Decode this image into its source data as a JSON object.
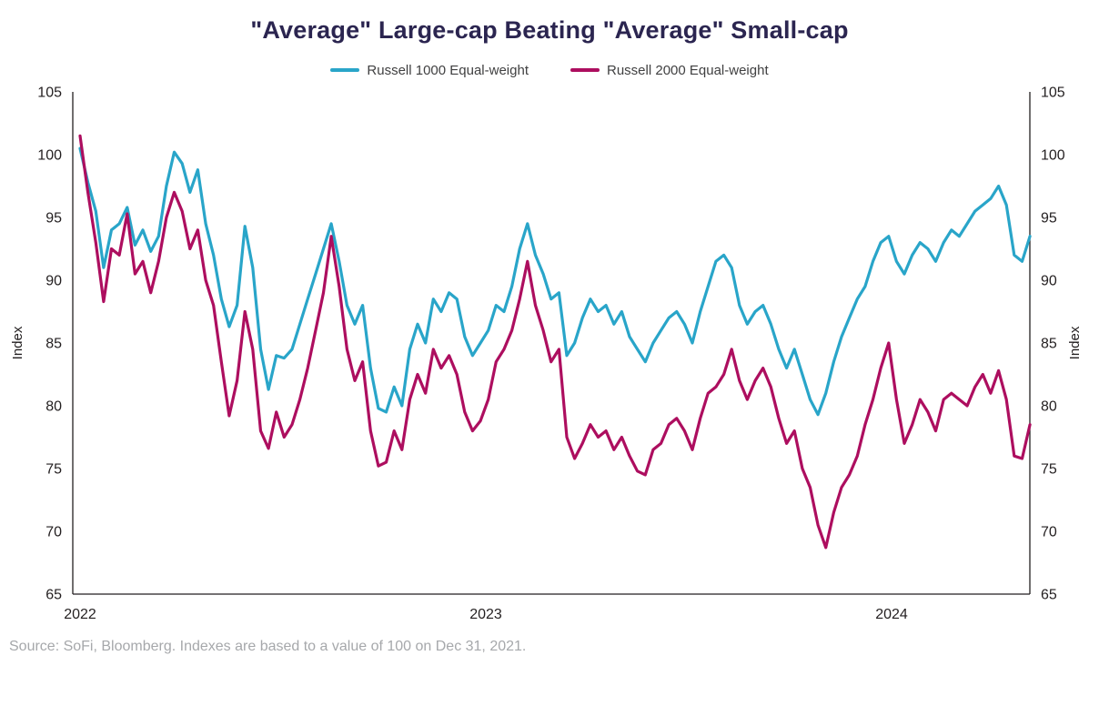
{
  "page": {
    "source_note": "Source: SoFi, Bloomberg. Indexes are based to a value of 100 on Dec 31, 2021."
  },
  "chart_data": {
    "type": "line",
    "title": "\"Average\" Large-cap Beating \"Average\" Small-cap",
    "ylabel_left": "Index",
    "ylabel_right": "Index",
    "ylim": [
      65,
      105
    ],
    "yticks": [
      65,
      70,
      75,
      80,
      85,
      90,
      95,
      100,
      105
    ],
    "xlim": [
      2022.0,
      2024.341
    ],
    "xticks": [
      {
        "label": "2022",
        "value": 2022
      },
      {
        "label": "2023",
        "value": 2023
      },
      {
        "label": "2024",
        "value": 2024
      }
    ],
    "grid": false,
    "legend_position": "top-center",
    "x_note": "points are approximately weekly, uniformly spaced from Jan 2022 through early May 2024",
    "series": [
      {
        "name": "Russell 1000 Equal-weight",
        "color": "#29a5c9",
        "values": [
          100.5,
          97.8,
          95.5,
          91.0,
          94.0,
          94.5,
          95.8,
          92.8,
          94.0,
          92.3,
          93.5,
          97.5,
          100.2,
          99.3,
          97.0,
          98.8,
          94.5,
          92.0,
          88.5,
          86.3,
          88.0,
          94.3,
          91.0,
          84.5,
          81.3,
          84.0,
          83.8,
          84.5,
          86.5,
          88.5,
          90.5,
          92.5,
          94.5,
          91.5,
          88.0,
          86.5,
          88.0,
          83.0,
          79.8,
          79.5,
          81.5,
          80.0,
          84.5,
          86.5,
          85.0,
          88.5,
          87.5,
          89.0,
          88.5,
          85.5,
          84.0,
          85.0,
          86.0,
          88.0,
          87.5,
          89.5,
          92.5,
          94.5,
          92.0,
          90.5,
          88.5,
          89.0,
          84.0,
          85.0,
          87.0,
          88.5,
          87.5,
          88.0,
          86.5,
          87.5,
          85.5,
          84.5,
          83.5,
          85.0,
          86.0,
          87.0,
          87.5,
          86.5,
          85.0,
          87.5,
          89.5,
          91.5,
          92.0,
          91.0,
          88.0,
          86.5,
          87.5,
          88.0,
          86.5,
          84.5,
          83.0,
          84.5,
          82.5,
          80.5,
          79.3,
          81.0,
          83.5,
          85.5,
          87.0,
          88.5,
          89.5,
          91.5,
          93.0,
          93.5,
          91.5,
          90.5,
          92.0,
          93.0,
          92.5,
          91.5,
          93.0,
          94.0,
          93.5,
          94.5,
          95.5,
          96.0,
          96.5,
          97.5,
          96.0,
          92.0,
          91.5,
          93.5
        ]
      },
      {
        "name": "Russell 2000 Equal-weight",
        "color": "#ad0e5f",
        "values": [
          101.5,
          97.0,
          93.0,
          88.3,
          92.5,
          92.0,
          95.3,
          90.5,
          91.5,
          89.0,
          91.5,
          95.0,
          97.0,
          95.5,
          92.5,
          94.0,
          90.0,
          88.0,
          83.5,
          79.2,
          82.0,
          87.5,
          84.5,
          78.0,
          76.6,
          79.5,
          77.5,
          78.5,
          80.5,
          83.0,
          86.0,
          89.0,
          93.5,
          89.5,
          84.5,
          82.0,
          83.5,
          78.0,
          75.2,
          75.5,
          78.0,
          76.5,
          80.5,
          82.5,
          81.0,
          84.5,
          83.0,
          84.0,
          82.5,
          79.5,
          78.0,
          78.8,
          80.5,
          83.5,
          84.5,
          86.0,
          88.5,
          91.5,
          88.0,
          86.0,
          83.5,
          84.5,
          77.5,
          75.8,
          77.0,
          78.5,
          77.5,
          78.0,
          76.5,
          77.5,
          76.0,
          74.8,
          74.5,
          76.5,
          77.0,
          78.5,
          79.0,
          78.0,
          76.5,
          79.0,
          81.0,
          81.5,
          82.5,
          84.5,
          82.0,
          80.5,
          82.0,
          83.0,
          81.5,
          79.0,
          77.0,
          78.0,
          75.0,
          73.5,
          70.5,
          68.7,
          71.5,
          73.5,
          74.5,
          76.0,
          78.5,
          80.5,
          83.0,
          85.0,
          80.5,
          77.0,
          78.5,
          80.5,
          79.5,
          78.0,
          80.5,
          81.0,
          80.5,
          80.0,
          81.5,
          82.5,
          81.0,
          82.8,
          80.5,
          76.0,
          75.8,
          78.5
        ]
      }
    ]
  }
}
